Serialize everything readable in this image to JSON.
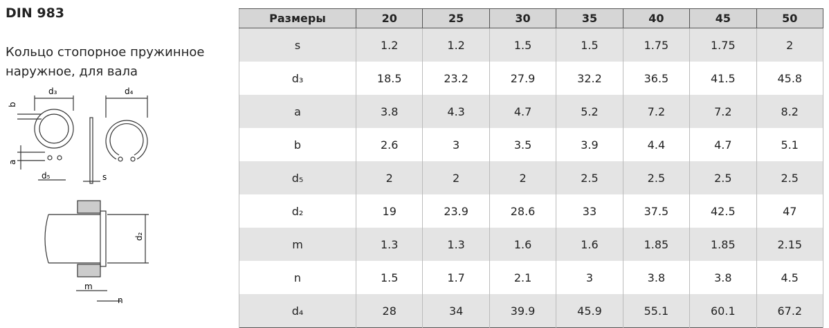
{
  "header": {
    "title": "DIN 983",
    "subtitle": [
      "Кольцо стопорное пружинное",
      "наружное, для вала"
    ]
  },
  "diagram": {
    "labels": [
      "d₃",
      "d₄",
      "b",
      "a",
      "d₅",
      "s",
      "d₂",
      "m",
      "n"
    ]
  },
  "table": {
    "columns": [
      "Размеры",
      "20",
      "25",
      "30",
      "35",
      "40",
      "45",
      "50"
    ],
    "rows": [
      [
        "s",
        "1.2",
        "1.2",
        "1.5",
        "1.5",
        "1.75",
        "1.75",
        "2"
      ],
      [
        "d₃",
        "18.5",
        "23.2",
        "27.9",
        "32.2",
        "36.5",
        "41.5",
        "45.8"
      ],
      [
        "a",
        "3.8",
        "4.3",
        "4.7",
        "5.2",
        "7.2",
        "7.2",
        "8.2"
      ],
      [
        "b",
        "2.6",
        "3",
        "3.5",
        "3.9",
        "4.4",
        "4.7",
        "5.1"
      ],
      [
        "d₅",
        "2",
        "2",
        "2",
        "2.5",
        "2.5",
        "2.5",
        "2.5"
      ],
      [
        "d₂",
        "19",
        "23.9",
        "28.6",
        "33",
        "37.5",
        "42.5",
        "47"
      ],
      [
        "m",
        "1.3",
        "1.3",
        "1.6",
        "1.6",
        "1.85",
        "1.85",
        "2.15"
      ],
      [
        "n",
        "1.5",
        "1.7",
        "2.1",
        "3",
        "3.8",
        "3.8",
        "4.5"
      ],
      [
        "d₄",
        "28",
        "34",
        "39.9",
        "45.9",
        "55.1",
        "60.1",
        "67.2"
      ]
    ]
  }
}
